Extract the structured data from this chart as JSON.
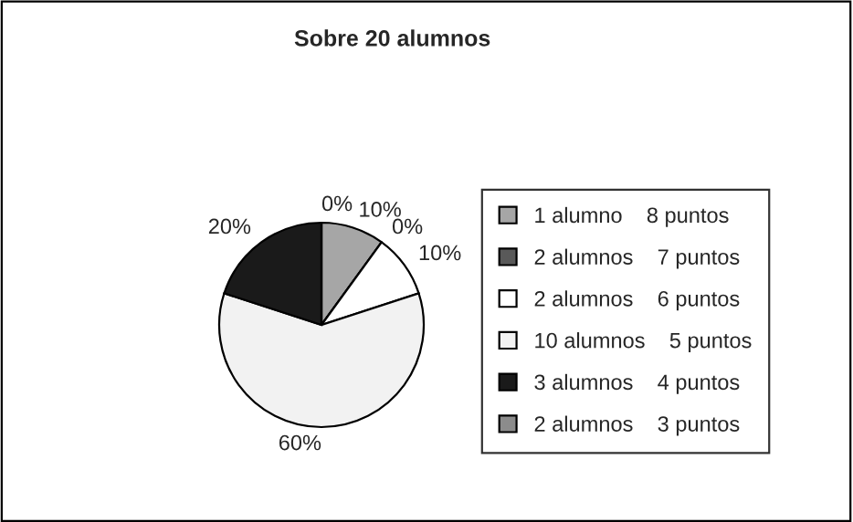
{
  "chart_data": {
    "type": "pie",
    "title": "Sobre 20 alumnos",
    "categories": [
      "1 alumno    8 puntos",
      "2 alumnos    7 puntos",
      "2 alumnos    6 puntos",
      "10 alumnos    5 puntos",
      "3 alumnos    4 puntos",
      "2 alumnos    3 puntos"
    ],
    "values": [
      10,
      0,
      10,
      60,
      20,
      0
    ],
    "colors": [
      "#a6a6a6",
      "#595959",
      "#ffffff",
      "#f2f2f2",
      "#1a1a1a",
      "#8c8c8c"
    ],
    "value_labels": [
      "10%",
      "0%",
      "10%",
      "60%",
      "20%",
      "0%"
    ],
    "legend": "right"
  }
}
